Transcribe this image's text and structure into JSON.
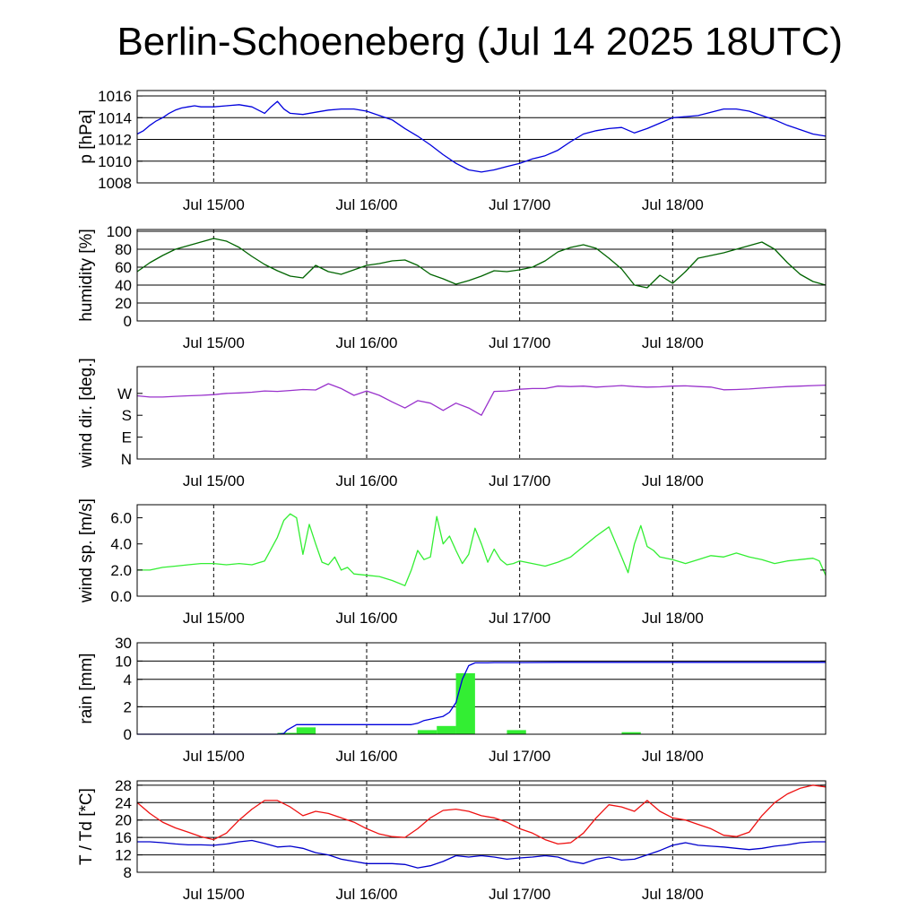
{
  "title": "Berlin-Schoeneberg (Jul 14 2025 18UTC)",
  "colors": {
    "pressure": "#0000dd",
    "humidity": "#006400",
    "wind_dir": "#9932cc",
    "wind_speed": "#33ee33",
    "rain_bar": "#33ee33",
    "rain_cum": "#0000dd",
    "temperature": "#ee1111",
    "dewpoint": "#0000cc"
  },
  "chart_data": [
    {
      "type": "line",
      "ylabel": "p [hPa]",
      "xlim": [
        -6,
        102
      ],
      "ylim": [
        1008,
        1016.5
      ],
      "y_ticks": [
        1008,
        1010,
        1012,
        1014,
        1016
      ],
      "y_tick_labels": [
        "1008",
        "1010",
        "1012",
        "1014",
        "1016"
      ],
      "x_ticks": [
        6,
        30,
        54,
        78
      ],
      "x_tick_labels": [
        "Jul 15/00",
        "Jul 16/00",
        "Jul 17/00",
        "Jul 18/00"
      ],
      "grid": "horizontal",
      "series": [
        {
          "color_key": "pressure",
          "x": [
            -6,
            -5,
            -4,
            -3,
            -2,
            -1,
            0,
            1,
            2,
            3,
            4,
            5,
            6,
            8,
            10,
            12,
            14,
            15,
            16,
            17,
            18,
            20,
            22,
            24,
            26,
            28,
            30,
            32,
            34,
            36,
            38,
            40,
            42,
            44,
            46,
            48,
            50,
            52,
            54,
            56,
            58,
            60,
            62,
            64,
            66,
            68,
            70,
            72,
            74,
            76,
            78,
            80,
            82,
            84,
            86,
            88,
            90,
            92,
            94,
            96,
            98,
            100,
            102
          ],
          "y": [
            1012.5,
            1012.8,
            1013.3,
            1013.7,
            1014.0,
            1014.4,
            1014.7,
            1014.9,
            1015.0,
            1015.1,
            1015.0,
            1015.0,
            1015.0,
            1015.1,
            1015.2,
            1015.0,
            1014.4,
            1015.0,
            1015.5,
            1014.8,
            1014.4,
            1014.3,
            1014.5,
            1014.7,
            1014.8,
            1014.8,
            1014.6,
            1014.2,
            1013.8,
            1013.0,
            1012.3,
            1011.5,
            1010.6,
            1009.8,
            1009.2,
            1009.0,
            1009.2,
            1009.5,
            1009.8,
            1010.2,
            1010.5,
            1011.0,
            1011.8,
            1012.5,
            1012.8,
            1013.0,
            1013.1,
            1012.6,
            1013.0,
            1013.5,
            1014.0,
            1014.1,
            1014.2,
            1014.5,
            1014.8,
            1014.8,
            1014.6,
            1014.2,
            1013.8,
            1013.3,
            1012.9,
            1012.5,
            1012.3
          ]
        }
      ]
    },
    {
      "type": "line",
      "ylabel": "humidity [%]",
      "xlim": [
        -6,
        102
      ],
      "ylim": [
        0,
        102
      ],
      "y_ticks": [
        0,
        20,
        40,
        60,
        80,
        100
      ],
      "y_tick_labels": [
        "0",
        "20",
        "40",
        "60",
        "80",
        "100"
      ],
      "x_ticks": [
        6,
        30,
        54,
        78
      ],
      "x_tick_labels": [
        "Jul 15/00",
        "Jul 16/00",
        "Jul 17/00",
        "Jul 18/00"
      ],
      "grid": "horizontal",
      "series": [
        {
          "color_key": "humidity",
          "x": [
            -6,
            -4,
            -2,
            0,
            2,
            4,
            6,
            8,
            10,
            12,
            14,
            16,
            18,
            20,
            22,
            24,
            26,
            28,
            30,
            32,
            34,
            36,
            38,
            40,
            42,
            44,
            46,
            48,
            50,
            52,
            54,
            56,
            58,
            60,
            62,
            64,
            66,
            68,
            70,
            72,
            74,
            76,
            78,
            80,
            82,
            84,
            86,
            88,
            90,
            92,
            94,
            96,
            98,
            100,
            102
          ],
          "y": [
            55,
            65,
            73,
            80,
            84,
            88,
            92,
            89,
            82,
            72,
            63,
            56,
            50,
            48,
            62,
            55,
            52,
            57,
            62,
            64,
            67,
            68,
            62,
            52,
            47,
            41,
            45,
            50,
            56,
            55,
            57,
            60,
            67,
            77,
            82,
            85,
            81,
            70,
            58,
            40,
            37,
            51,
            42,
            55,
            70,
            73,
            76,
            80,
            84,
            88,
            80,
            65,
            52,
            44,
            40
          ]
        }
      ]
    },
    {
      "type": "line",
      "ylabel": "wind dir. [deg.]",
      "xlim": [
        -6,
        102
      ],
      "ylim": [
        0,
        380
      ],
      "y_ticks": [
        0,
        90,
        180,
        270
      ],
      "y_tick_labels": [
        "N",
        "E",
        "S",
        "W"
      ],
      "x_ticks": [
        6,
        30,
        54,
        78
      ],
      "x_tick_labels": [
        "Jul 15/00",
        "Jul 16/00",
        "Jul 17/00",
        "Jul 18/00"
      ],
      "grid": "none",
      "series": [
        {
          "color_key": "wind_dir",
          "x": [
            -6,
            -4,
            -2,
            0,
            2,
            4,
            6,
            8,
            10,
            12,
            14,
            16,
            18,
            20,
            22,
            24,
            26,
            28,
            30,
            32,
            34,
            36,
            38,
            40,
            42,
            44,
            46,
            48,
            50,
            52,
            54,
            56,
            58,
            60,
            62,
            64,
            66,
            68,
            70,
            72,
            74,
            76,
            78,
            80,
            82,
            84,
            86,
            88,
            90,
            92,
            94,
            96,
            98,
            100,
            102
          ],
          "y": [
            260,
            255,
            255,
            258,
            260,
            262,
            265,
            270,
            272,
            275,
            280,
            278,
            282,
            286,
            284,
            310,
            290,
            262,
            280,
            262,
            235,
            210,
            240,
            230,
            200,
            230,
            210,
            180,
            278,
            280,
            287,
            290,
            290,
            300,
            298,
            300,
            296,
            299,
            302,
            298,
            296,
            297,
            300,
            301,
            298,
            296,
            285,
            286,
            288,
            292,
            295,
            298,
            300,
            302,
            304
          ]
        }
      ]
    },
    {
      "type": "line",
      "ylabel": "wind sp. [m/s]",
      "xlim": [
        -6,
        102
      ],
      "ylim": [
        0,
        7
      ],
      "y_ticks": [
        0,
        2,
        4,
        6
      ],
      "y_tick_labels": [
        "0.0",
        "2.0",
        "4.0",
        "6.0"
      ],
      "x_ticks": [
        6,
        30,
        54,
        78
      ],
      "x_tick_labels": [
        "Jul 15/00",
        "Jul 16/00",
        "Jul 17/00",
        "Jul 18/00"
      ],
      "grid": "none",
      "series": [
        {
          "color_key": "wind_speed",
          "x": [
            -6,
            -4,
            -2,
            0,
            2,
            4,
            6,
            8,
            10,
            12,
            14,
            16,
            17,
            18,
            19,
            20,
            21,
            22,
            23,
            24,
            25,
            26,
            27,
            28,
            30,
            32,
            34,
            36,
            37,
            38,
            39,
            40,
            41,
            42,
            43,
            44,
            45,
            46,
            47,
            48,
            49,
            50,
            51,
            52,
            53,
            54,
            56,
            58,
            60,
            62,
            64,
            66,
            68,
            70,
            71,
            72,
            73,
            74,
            75,
            76,
            78,
            80,
            82,
            84,
            86,
            88,
            90,
            92,
            94,
            96,
            98,
            100,
            101,
            102
          ],
          "y": [
            2.0,
            2.0,
            2.2,
            2.3,
            2.4,
            2.5,
            2.5,
            2.4,
            2.5,
            2.4,
            2.7,
            4.5,
            5.8,
            6.3,
            6.0,
            3.2,
            5.5,
            4.0,
            2.6,
            2.4,
            3.0,
            2.0,
            2.2,
            1.7,
            1.6,
            1.5,
            1.2,
            0.8,
            2.0,
            3.5,
            2.8,
            3.0,
            6.1,
            4.0,
            4.6,
            3.5,
            2.5,
            3.2,
            5.2,
            4.0,
            2.6,
            3.6,
            2.8,
            2.4,
            2.5,
            2.7,
            2.5,
            2.3,
            2.6,
            3.0,
            3.8,
            4.6,
            5.3,
            3.0,
            1.8,
            4.0,
            5.4,
            3.8,
            3.5,
            3.0,
            2.8,
            2.5,
            2.8,
            3.1,
            3.0,
            3.3,
            3.0,
            2.8,
            2.5,
            2.7,
            2.8,
            2.9,
            2.7,
            1.6
          ]
        }
      ]
    },
    {
      "type": "bar",
      "ylabel": "rain [mm]",
      "xlim": [
        -6,
        102
      ],
      "y_scale": "custom",
      "y_ticks": [
        0,
        2,
        4,
        10,
        30
      ],
      "y_tick_labels": [
        "0",
        "2",
        "4",
        "10",
        "30"
      ],
      "x_ticks": [
        6,
        30,
        54,
        78
      ],
      "x_tick_labels": [
        "Jul 15/00",
        "Jul 16/00",
        "Jul 17/00",
        "Jul 18/00"
      ],
      "grid": "horizontal",
      "bars": {
        "color_key": "rain_bar",
        "width_hours": 3,
        "x": [
          17.5,
          20.5,
          39.5,
          42.5,
          45.5,
          53.5,
          71.5
        ],
        "values": [
          0.1,
          0.5,
          0.3,
          0.6,
          6.0,
          0.3,
          0.15
        ]
      },
      "series": [
        {
          "name": "",
          "color_key": "rain_cum",
          "x": [
            -6,
            10,
            16,
            17,
            17.5,
            19,
            21,
            25,
            29,
            33,
            37,
            38,
            39,
            40,
            41,
            42,
            43,
            44,
            45,
            46,
            47,
            48,
            49,
            50,
            54,
            60,
            70,
            80,
            90,
            102
          ],
          "y": [
            0,
            0,
            0,
            0.05,
            0.3,
            0.7,
            0.7,
            0.7,
            0.7,
            0.7,
            0.7,
            0.8,
            1.0,
            1.1,
            1.2,
            1.3,
            1.6,
            2.3,
            4.0,
            8.5,
            9.4,
            9.4,
            9.4,
            9.5,
            9.5,
            9.6,
            9.6,
            9.6,
            9.6,
            9.6
          ]
        }
      ]
    },
    {
      "type": "line",
      "ylabel": "T / Td [*C]",
      "xlim": [
        -6,
        102
      ],
      "ylim": [
        8,
        29
      ],
      "y_ticks": [
        8,
        12,
        16,
        20,
        24,
        28
      ],
      "y_tick_labels": [
        "8",
        "12",
        "16",
        "20",
        "24",
        "28"
      ],
      "x_ticks": [
        6,
        30,
        54,
        78
      ],
      "x_tick_labels": [
        "Jul 15/00",
        "Jul 16/00",
        "Jul 17/00",
        "Jul 18/00"
      ],
      "grid": "horizontal",
      "series": [
        {
          "color_key": "temperature",
          "x": [
            -6,
            -4,
            -2,
            0,
            2,
            4,
            6,
            8,
            10,
            12,
            14,
            16,
            18,
            20,
            22,
            24,
            26,
            28,
            30,
            32,
            34,
            36,
            38,
            40,
            42,
            44,
            46,
            48,
            50,
            52,
            54,
            56,
            58,
            60,
            62,
            64,
            66,
            68,
            70,
            72,
            74,
            76,
            78,
            80,
            82,
            84,
            86,
            88,
            90,
            92,
            94,
            96,
            98,
            100,
            102
          ],
          "y": [
            24,
            21.5,
            19.5,
            18.2,
            17.2,
            16.2,
            15.5,
            17,
            20,
            22.5,
            24.5,
            24.5,
            23,
            21,
            22,
            21.5,
            20.5,
            19.5,
            18,
            16.8,
            16.2,
            16,
            18,
            20.5,
            22.2,
            22.5,
            22,
            21,
            20.5,
            19.5,
            18,
            17,
            15.5,
            14.5,
            14.8,
            17,
            20.5,
            23.5,
            23,
            22,
            24.5,
            22,
            20.5,
            20,
            19,
            18,
            16.5,
            16.2,
            17.2,
            21,
            24,
            26,
            27.3,
            28,
            27.6
          ]
        },
        {
          "color_key": "dewpoint",
          "x": [
            -6,
            -4,
            -2,
            0,
            2,
            4,
            6,
            8,
            10,
            12,
            14,
            16,
            18,
            20,
            22,
            24,
            26,
            28,
            30,
            32,
            34,
            36,
            38,
            40,
            42,
            44,
            46,
            48,
            50,
            52,
            54,
            56,
            58,
            60,
            62,
            64,
            66,
            68,
            70,
            72,
            74,
            76,
            78,
            80,
            82,
            84,
            86,
            88,
            90,
            92,
            94,
            96,
            98,
            100,
            102
          ],
          "y": [
            15,
            15,
            14.8,
            14.5,
            14.3,
            14.3,
            14.2,
            14.5,
            15,
            15.3,
            14.6,
            13.8,
            14,
            13.5,
            12.5,
            12,
            11,
            10.5,
            10,
            10,
            10,
            9.8,
            9,
            9.5,
            10.5,
            11.8,
            11.5,
            11.8,
            11.5,
            11,
            11.3,
            11.5,
            11.8,
            11.5,
            10.5,
            10,
            11,
            11.5,
            10.8,
            11,
            12,
            13,
            14.2,
            14.8,
            14.2,
            14,
            13.8,
            13.5,
            13.2,
            13.5,
            14,
            14.3,
            14.8,
            15,
            15
          ]
        }
      ]
    }
  ]
}
